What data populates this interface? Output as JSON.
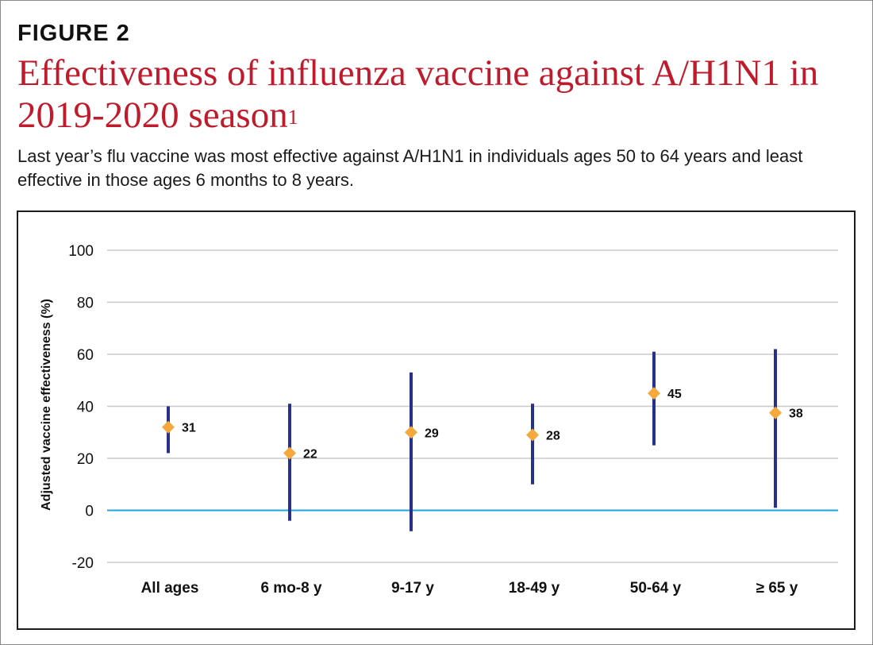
{
  "figure_label": "FIGURE 2",
  "title_main": "Effectiveness of influenza vaccine against A/H1N1 in 2019-2020 season",
  "title_sup": "1",
  "subtitle": "Last year’s flu vaccine was most effective against A/H1N1 in individuals ages 50 to 64 years and least effective in those ages 6 months to 8 years.",
  "colors": {
    "title": "#c01b2c",
    "interval": "#27308a",
    "point": "#f5a93c",
    "zero_line": "#1ea6dc",
    "grid": "#c8c8c8"
  },
  "chart_data": {
    "type": "scatter",
    "title": "",
    "xlabel": "",
    "ylabel": "Adjusted vaccine effectiveness (%)",
    "ylim": [
      -20,
      100
    ],
    "yticks": [
      100,
      80,
      60,
      40,
      20,
      0,
      -20
    ],
    "grid": true,
    "categories": [
      "All ages",
      "6 mo-8 y",
      "9-17 y",
      "18-49 y",
      "50-64 y",
      "≥ 65 y"
    ],
    "values": [
      31,
      22,
      29,
      28,
      45,
      38
    ],
    "point_positions": [
      32,
      22,
      30,
      29,
      45,
      37.5
    ],
    "ci_low": [
      22,
      -4,
      -8,
      10,
      25,
      1
    ],
    "ci_high": [
      40,
      41,
      53,
      41,
      61,
      62
    ]
  }
}
